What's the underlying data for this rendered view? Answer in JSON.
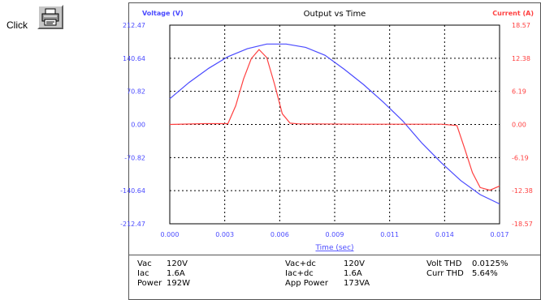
{
  "instruction": {
    "click_label": "Click"
  },
  "chart_data": {
    "type": "line",
    "title": "Output vs Time",
    "xlabel": "Time (sec)",
    "ylabel_left": "Voltage (V)",
    "ylabel_right": "Current (A)",
    "x_ticks": [
      "0.000",
      "0.003",
      "0.006",
      "0.009",
      "0.011",
      "0.014",
      "0.017"
    ],
    "y_left_ticks": [
      "212.47",
      "140.64",
      "70.82",
      "0.00",
      "-70.82",
      "-140.64",
      "-212.47"
    ],
    "y_right_ticks": [
      "18.57",
      "12.38",
      "6.19",
      "0.00",
      "-6.19",
      "-12.38",
      "-18.57"
    ],
    "xlim": [
      0,
      0.017
    ],
    "ylim_left": [
      -212.47,
      212.47
    ],
    "ylim_right": [
      -18.57,
      18.57
    ],
    "grid": true,
    "series": [
      {
        "name": "Voltage",
        "axis": "left",
        "color": "#4a4aff",
        "x": [
          0,
          0.001,
          0.002,
          0.003,
          0.004,
          0.005,
          0.006,
          0.007,
          0.008,
          0.009,
          0.01,
          0.011,
          0.012,
          0.013,
          0.014,
          0.015,
          0.016,
          0.017
        ],
        "y": [
          55,
          90,
          120,
          145,
          162,
          172,
          172,
          165,
          148,
          118,
          85,
          48,
          8,
          -40,
          -82,
          -120,
          -150,
          -170
        ]
      },
      {
        "name": "Current",
        "axis": "right",
        "color": "#ff4040",
        "x": [
          0,
          0.0018,
          0.003,
          0.0034,
          0.0038,
          0.0042,
          0.0046,
          0.005,
          0.0054,
          0.0058,
          0.0062,
          0.0066,
          0.007,
          0.01,
          0.014,
          0.0148,
          0.0152,
          0.0156,
          0.016,
          0.0165,
          0.017
        ],
        "y": [
          0,
          0.15,
          0.15,
          3.5,
          8.5,
          12.3,
          14.0,
          12.5,
          7.5,
          2.0,
          0.25,
          0.12,
          0.1,
          0.05,
          0.05,
          -0.2,
          -4.5,
          -9.0,
          -11.8,
          -12.3,
          -11.5
        ]
      }
    ]
  },
  "info": {
    "col1": [
      {
        "label": "Vac",
        "value": "120V"
      },
      {
        "label": "Iac",
        "value": "1.6A"
      },
      {
        "label": "Power",
        "value": "192W"
      }
    ],
    "col2": [
      {
        "label": "Vac+dc",
        "value": "120V"
      },
      {
        "label": "Iac+dc",
        "value": "1.6A"
      },
      {
        "label": "App Power",
        "value": "173VA"
      }
    ],
    "col3": [
      {
        "label": "Volt THD",
        "value": "0.0125%"
      },
      {
        "label": "Curr THD",
        "value": "5.64%"
      }
    ]
  },
  "colors": {
    "voltage": "#4a4aff",
    "current": "#ff4040",
    "grid": "#000000"
  },
  "icons": {
    "print": "printer-icon"
  }
}
